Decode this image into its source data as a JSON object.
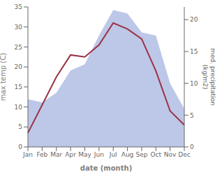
{
  "chart_data": {
    "type": "line",
    "xlabel": "date (month)",
    "ylabel": "max temp (C)",
    "y2label": "med. precipitation\n(kg/m2)",
    "categories": [
      "Jan",
      "Feb",
      "Mar",
      "Apr",
      "May",
      "Jun",
      "Jul",
      "Aug",
      "Sep",
      "Oct",
      "Nov",
      "Dec"
    ],
    "series": [
      {
        "type": "area",
        "axis": "y2",
        "color": "#bdc7e8",
        "values": [
          7.5,
          7.0,
          8.5,
          12.0,
          13.0,
          17.5,
          21.5,
          21.0,
          18.0,
          17.5,
          10.0,
          6.0
        ]
      },
      {
        "type": "line",
        "color": "#993344",
        "values": [
          3.5,
          10.5,
          17.5,
          23.0,
          22.5,
          25.5,
          31.0,
          29.5,
          27.0,
          19.0,
          9.0,
          5.5
        ]
      }
    ],
    "ylim": [
      0,
      35
    ],
    "yticks": [
      0,
      5,
      10,
      15,
      20,
      25,
      30,
      35
    ],
    "y2lim": [
      0,
      22
    ],
    "y2ticks": [
      0,
      5,
      10,
      15,
      20
    ]
  }
}
